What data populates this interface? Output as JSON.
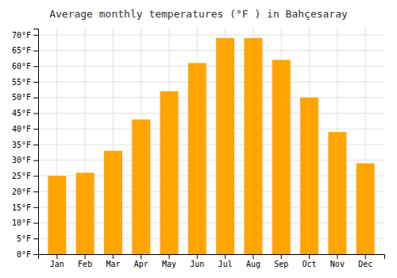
{
  "chart_data": {
    "type": "bar",
    "title": "Average monthly temperatures (°F ) in Bahçesaray",
    "categories": [
      "Jan",
      "Feb",
      "Mar",
      "Apr",
      "May",
      "Jun",
      "Jul",
      "Aug",
      "Sep",
      "Oct",
      "Nov",
      "Dec"
    ],
    "values": [
      25,
      26,
      33,
      43,
      52,
      61,
      69,
      69,
      62,
      50,
      39,
      29
    ],
    "color": "#FFA500",
    "ylim": [
      0,
      72
    ],
    "yticks": [
      {
        "value": 0,
        "label": "0°F"
      },
      {
        "value": 5,
        "label": "5°F"
      },
      {
        "value": 10,
        "label": "10°F"
      },
      {
        "value": 15,
        "label": "15°F"
      },
      {
        "value": 20,
        "label": "20°F"
      },
      {
        "value": 25,
        "label": "25°F"
      },
      {
        "value": 30,
        "label": "30°F"
      },
      {
        "value": 35,
        "label": "35°F"
      },
      {
        "value": 40,
        "label": "40°F"
      },
      {
        "value": 45,
        "label": "45°F"
      },
      {
        "value": 50,
        "label": "50°F"
      },
      {
        "value": 55,
        "label": "55°F"
      },
      {
        "value": 60,
        "label": "60°F"
      },
      {
        "value": 65,
        "label": "65°F"
      },
      {
        "value": 70,
        "label": "70°F"
      }
    ],
    "grid": true
  }
}
